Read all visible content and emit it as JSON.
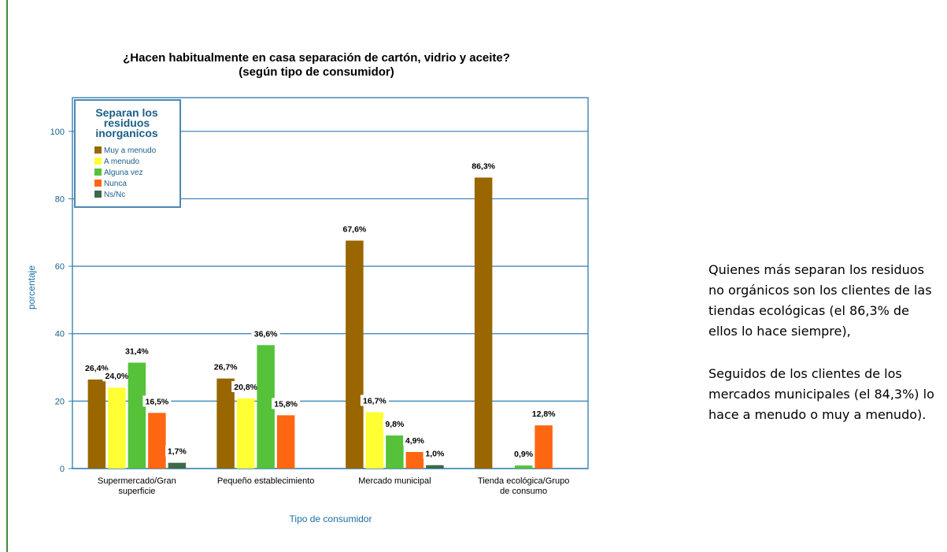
{
  "chart_data": {
    "type": "bar",
    "title": "¿Hacen habitualmente en casa separación de cartón, vidrio y aceite?",
    "subtitle": "(según tipo de consumidor)",
    "xlabel": "Tipo de consumidor",
    "ylabel": "porcentaje",
    "ylim": [
      0,
      110
    ],
    "yticks": [
      0,
      20,
      40,
      60,
      80,
      100
    ],
    "grid": true,
    "legend": {
      "title": "Separan los residuos inorganicos",
      "position": "top-left"
    },
    "categories": [
      "Supermercado/Gran superficie",
      "Pequeño establecimiento",
      "Mercado municipal",
      "Tienda ecológica/Grupo de consumo"
    ],
    "series": [
      {
        "name": "Muy a menudo",
        "color": "#996600",
        "values": [
          26.4,
          26.7,
          67.6,
          86.3
        ],
        "labels": [
          "26,4%",
          "26,7%",
          "67,6%",
          "86,3%"
        ]
      },
      {
        "name": "A menudo",
        "color": "#ffff33",
        "values": [
          24.0,
          20.8,
          16.7,
          null
        ],
        "labels": [
          "24,0%",
          "20,8%",
          "16,7%",
          ""
        ]
      },
      {
        "name": "Alguna vez",
        "color": "#55c23a",
        "values": [
          31.4,
          36.6,
          9.8,
          0.9
        ],
        "labels": [
          "31,4%",
          "36,6%",
          "9,8%",
          "0,9%"
        ]
      },
      {
        "name": "Nunca",
        "color": "#ff6611",
        "values": [
          16.5,
          15.8,
          4.9,
          12.8
        ],
        "labels": [
          "16,5%",
          "15,8%",
          "4,9%",
          "12,8%"
        ]
      },
      {
        "name": "Ns/Nc",
        "color": "#3d6b47",
        "values": [
          1.7,
          null,
          1.0,
          null
        ],
        "labels": [
          "1,7%",
          "",
          "1,0%",
          ""
        ]
      }
    ]
  },
  "side_text": {
    "p1": "Quienes más separan los residuos no orgánicos son los clientes de las tiendas ecológicas (el 86,3% de ellos lo hace siempre),",
    "p2": "Seguidos de los clientes de los mercados municipales (el 84,3%) lo hace a menudo o muy a menudo)."
  }
}
